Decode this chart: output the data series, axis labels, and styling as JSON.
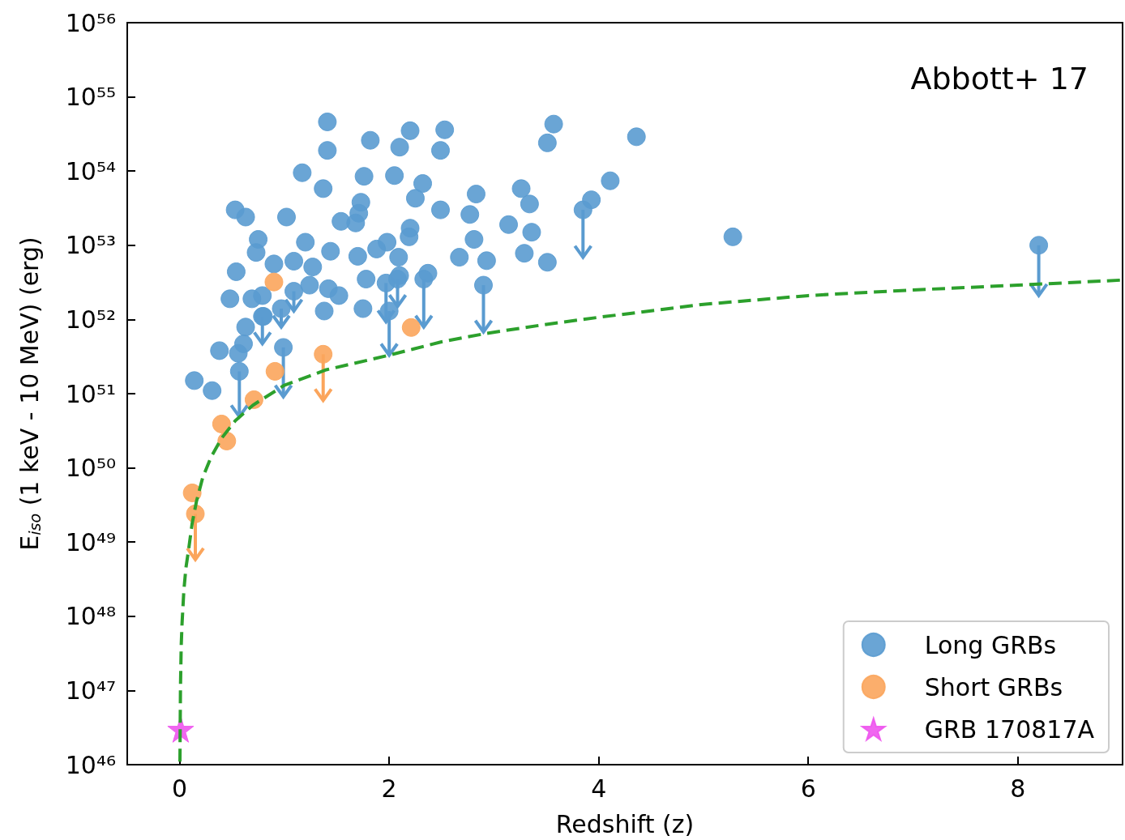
{
  "chart_data": {
    "type": "scatter",
    "xlabel": "Redshift (z)",
    "ylabel": "E$_{iso}$ (1 keV - 10 MeV) (erg)",
    "xlim": [
      -0.5,
      9
    ],
    "xticks": [
      0,
      2,
      4,
      6,
      8
    ],
    "ylim": [
      1e+46,
      1e+56
    ],
    "log": "y",
    "yticks": [
      {
        "value": 1e+46,
        "label": "10⁴⁶"
      },
      {
        "value": 1e+47,
        "label": "10⁴⁷"
      },
      {
        "value": 1e+48,
        "label": "10⁴⁸"
      },
      {
        "value": 1e+49,
        "label": "10⁴⁹"
      },
      {
        "value": 1e+50,
        "label": "10⁵⁰"
      },
      {
        "value": 1e+51,
        "label": "10⁵¹"
      },
      {
        "value": 1e+52,
        "label": "10⁵²"
      },
      {
        "value": 1e+53,
        "label": "10⁵³"
      },
      {
        "value": 1e+54,
        "label": "10⁵⁴"
      },
      {
        "value": 1e+55,
        "label": "10⁵⁵"
      },
      {
        "value": 1e+56,
        "label": "10⁵⁶"
      }
    ],
    "grid": false,
    "legend": "bottom right",
    "annotations": [
      "Abbott+ 17"
    ],
    "series": [
      {
        "name": "Long GRBs",
        "marker": "circle",
        "color": "#5a9bd0",
        "x": [
          1.41,
          1.41,
          1.82,
          2.1,
          2.2,
          2.53,
          2.49,
          3.57,
          3.51,
          4.36,
          1.17,
          1.37,
          1.76,
          2.05,
          2.32,
          2.25,
          2.49,
          1.73,
          1.71,
          1.68,
          1.54,
          2.83,
          2.77,
          3.26,
          3.34,
          3.36,
          3.93,
          4.11,
          3.14,
          2.81,
          2.93,
          2.67,
          3.29,
          3.51,
          5.28,
          0.53,
          0.63,
          1.02,
          0.75,
          0.73,
          1.2,
          1.44,
          1.7,
          1.98,
          1.88,
          2.2,
          2.19,
          2.09,
          0.54,
          0.9,
          1.09,
          1.27,
          0.48,
          0.69,
          0.79,
          1.24,
          1.42,
          1.52,
          1.78,
          2.1,
          2.37,
          1.38,
          1.75,
          0.8,
          0.63,
          0.38,
          0.56,
          0.61,
          0.14,
          0.31,
          0.57,
          0.99,
          1.09,
          0.79,
          0.97,
          1.97,
          2.0,
          2.08,
          2.33,
          2.9,
          3.85,
          8.2
        ],
        "values": [
          4.6e+54,
          1.9e+54,
          2.6e+54,
          2.1e+54,
          3.5e+54,
          3.6e+54,
          1.9e+54,
          4.3e+54,
          2.4e+54,
          2.9e+54,
          9.5e+53,
          5.8e+53,
          8.5e+53,
          8.7e+53,
          6.8e+53,
          4.3e+53,
          3e+53,
          3.8e+53,
          2.7e+53,
          2e+53,
          2.1e+53,
          4.9e+53,
          2.6e+53,
          5.8e+53,
          3.6e+53,
          1.5e+53,
          4.1e+53,
          7.4e+53,
          1.9e+53,
          1.2e+53,
          6.2e+52,
          6.9e+52,
          7.8e+52,
          5.9e+52,
          1.3e+53,
          3e+53,
          2.4e+53,
          2.4e+53,
          1.2e+53,
          8e+52,
          1.1e+53,
          8.3e+52,
          7.1e+52,
          1.1e+53,
          8.9e+52,
          1.7e+53,
          1.3e+53,
          6.9e+52,
          4.4e+52,
          5.6e+52,
          6.1e+52,
          5.1e+52,
          1.9e+52,
          1.9e+52,
          2.1e+52,
          2.9e+52,
          2.6e+52,
          2.1e+52,
          3.5e+52,
          3.9e+52,
          4.2e+52,
          1.3e+52,
          1.4e+52,
          1.1e+52,
          7.9e+51,
          3.8e+51,
          3.5e+51,
          4.7e+51,
          1.5e+51,
          1.1e+51,
          2e+51,
          4.2e+51,
          2.4e+52,
          1.1e+52,
          1.4e+52,
          3.1e+52,
          1.3e+52,
          3.5e+52,
          3.5e+52,
          2.9e+52,
          3e+53,
          1e+53
        ],
        "errors": [
          null,
          null,
          null,
          null,
          null,
          null,
          null,
          null,
          null,
          null,
          null,
          null,
          null,
          null,
          null,
          null,
          null,
          null,
          null,
          null,
          null,
          null,
          null,
          null,
          null,
          null,
          null,
          null,
          null,
          null,
          null,
          null,
          null,
          null,
          null,
          null,
          null,
          null,
          null,
          null,
          null,
          null,
          null,
          null,
          null,
          null,
          null,
          null,
          null,
          null,
          null,
          null,
          null,
          null,
          null,
          null,
          null,
          null,
          null,
          null,
          null,
          null,
          null,
          null,
          null,
          null,
          null,
          null,
          null,
          null,
          [
            4.9e+50,
            2e+51
          ],
          [
            9.1e+50,
            4.2e+51
          ],
          [
            1.3e+52,
            2.4e+52
          ],
          [
            4.7e+51,
            1.1e+52
          ],
          [
            7.9e+51,
            1.4e+52
          ],
          [
            9.3e+51,
            3.1e+52
          ],
          [
            3.3e+51,
            1.3e+52
          ],
          [
            1.5e+52,
            3.5e+52
          ],
          [
            7.9e+51,
            3.5e+52
          ],
          [
            6.8e+51,
            2.9e+52
          ],
          [
            6.9e+52,
            3e+53
          ],
          [
            2.1e+52,
            1e+53
          ]
        ]
      },
      {
        "name": "Short GRBs",
        "marker": "circle",
        "color": "#fba55c",
        "x": [
          0.9,
          2.21,
          1.37,
          0.91,
          0.71,
          0.4,
          0.45,
          0.12,
          0.15
        ],
        "values": [
          3.2e+52,
          7.8e+51,
          3.4e+51,
          2e+51,
          8.3e+50,
          3.9e+50,
          2.3e+50,
          4.6e+49,
          2.4e+49
        ],
        "errors": [
          null,
          null,
          [
            8.1e+50,
            3.4e+51
          ],
          null,
          null,
          null,
          null,
          null,
          [
            5.8e+48,
            2.4e+49
          ]
        ]
      },
      {
        "type": "line",
        "marker": "none",
        "line_style": "dashed",
        "color": "#2ca02c",
        "x": [
          0.003,
          0.008,
          0.015,
          0.023,
          0.04,
          0.06,
          0.085,
          0.12,
          0.16,
          0.22,
          0.3,
          0.4,
          0.53,
          0.7,
          1.0,
          1.4,
          2.0,
          2.5,
          2.93,
          3.5,
          4.0,
          5.0,
          6.0,
          7.0,
          8.0,
          9.0
        ],
        "values": [
          1.1e+46,
          1.1e+47,
          4e+47,
          8e+47,
          2.2e+48,
          4.5e+48,
          7.8e+48,
          1.8e+49,
          3.5e+49,
          7.4e+49,
          1.4e+50,
          2.5e+50,
          4.3e+50,
          7e+50,
          1.3e+51,
          2.1e+51,
          3.3e+51,
          5e+51,
          6.5e+51,
          8.6e+51,
          1.07e+52,
          1.6e+52,
          2.1e+52,
          2.5e+52,
          2.9e+52,
          3.4e+52
        ]
      },
      {
        "name": "GRB 170817A",
        "marker": "star",
        "color": "#ee55ee",
        "x": [
          0.01
        ],
        "values": [
          3e+46
        ]
      }
    ]
  }
}
